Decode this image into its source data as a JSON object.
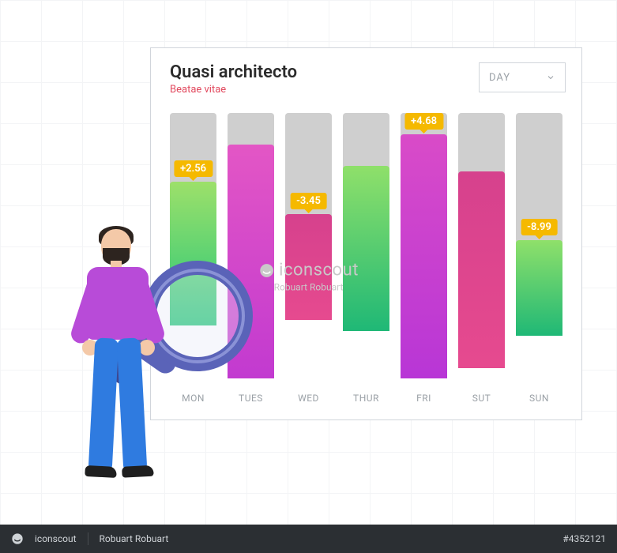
{
  "card": {
    "title": "Quasi architecto",
    "subtitle": "Beatae vitae",
    "selector_label": "DAY"
  },
  "chart": {
    "type": "bar",
    "track_color": "#cfcfcf",
    "max": 100,
    "label_color": "#9aa0a6",
    "label_fontsize": 12,
    "tag_bg": "#f5b900",
    "tag_text_color": "#ffffff",
    "bars": [
      {
        "label": "MON",
        "fill_pct": 54,
        "track_pct": 80,
        "tag": "+2.56",
        "gradient": [
          "#23c77a",
          "#9de06a"
        ]
      },
      {
        "label": "TUES",
        "fill_pct": 88,
        "track_pct": 100,
        "tag": null,
        "gradient": [
          "#c23ad0",
          "#e356c5"
        ]
      },
      {
        "label": "WED",
        "fill_pct": 40,
        "track_pct": 78,
        "tag": "-3.45",
        "gradient": [
          "#e64a8f",
          "#d6418d"
        ]
      },
      {
        "label": "THUR",
        "fill_pct": 62,
        "track_pct": 82,
        "tag": null,
        "gradient": [
          "#1fb876",
          "#8fe06a"
        ]
      },
      {
        "label": "FRI",
        "fill_pct": 92,
        "track_pct": 100,
        "tag": "+4.68",
        "gradient": [
          "#b836d6",
          "#d94bc8"
        ]
      },
      {
        "label": "SUT",
        "fill_pct": 74,
        "track_pct": 96,
        "tag": null,
        "gradient": [
          "#e64a8f",
          "#d6418d"
        ]
      },
      {
        "label": "SUN",
        "fill_pct": 36,
        "track_pct": 84,
        "tag": "-8.99",
        "gradient": [
          "#1fb876",
          "#8fe06a"
        ]
      }
    ]
  },
  "person": {
    "shirt_color": "#b84bd8",
    "pants_color": "#2f7be0",
    "skin_color": "#f4c9a8",
    "hair_color": "#2d241f",
    "magnifier_color": "#5a63b8"
  },
  "watermark": {
    "brand": "iconscout",
    "byline": "Robuart Robuart"
  },
  "footer": {
    "brand": "iconscout",
    "author": "Robuart Robuart",
    "id": "#4352121"
  }
}
